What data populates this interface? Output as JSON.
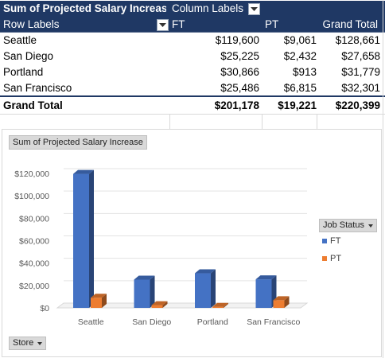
{
  "pivot": {
    "value_field": "Sum of Projected Salary Increase",
    "column_labels": "Column Labels",
    "row_labels": "Row Labels",
    "columns": [
      "FT",
      "PT",
      "Grand Total"
    ],
    "rows": [
      {
        "store": "Seattle",
        "ft": "$119,600",
        "pt": "$9,061",
        "total": "$128,661"
      },
      {
        "store": "San Diego",
        "ft": "$25,225",
        "pt": "$2,432",
        "total": "$27,658"
      },
      {
        "store": "Portland",
        "ft": "$30,866",
        "pt": "$913",
        "total": "$31,779"
      },
      {
        "store": "San Francisco",
        "ft": "$25,486",
        "pt": "$6,815",
        "total": "$32,301"
      }
    ],
    "grand_total": {
      "label": "Grand Total",
      "ft": "$201,178",
      "pt": "$19,221",
      "total": "$220,399"
    }
  },
  "chart_ui": {
    "value_button": "Sum of Projected Salary Increase",
    "legend_button": "Job Status",
    "axis_button": "Store",
    "colors": {
      "ft": "#4472c4",
      "pt": "#ed7d31"
    }
  },
  "chart_data": {
    "type": "bar",
    "categories": [
      "Seattle",
      "San Diego",
      "Portland",
      "San Francisco"
    ],
    "series": [
      {
        "name": "FT",
        "values": [
          119600,
          25225,
          30866,
          25486
        ]
      },
      {
        "name": "PT",
        "values": [
          9061,
          2432,
          913,
          6815
        ]
      }
    ],
    "y_ticks": [
      "$0",
      "$20,000",
      "$40,000",
      "$60,000",
      "$80,000",
      "$100,000",
      "$120,000"
    ],
    "ylim": [
      0,
      120000
    ],
    "legend": "right",
    "grid": true
  }
}
